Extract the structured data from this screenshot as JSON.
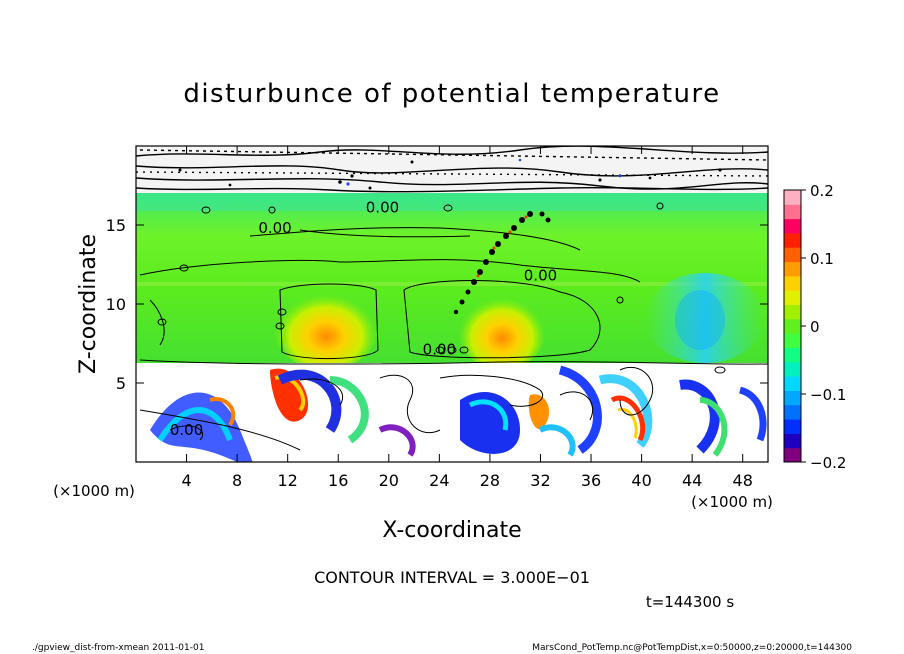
{
  "chart_data": {
    "type": "heatmap",
    "title": "disturbunce of potential temperature",
    "xlabel": "X-coordinate",
    "ylabel": "Z-coordinate",
    "x_unit": "(×1000 m)",
    "y_unit": "(×1000 m)",
    "xlim": [
      0,
      50
    ],
    "ylim": [
      0,
      20
    ],
    "x_ticks": [
      4,
      8,
      12,
      16,
      20,
      24,
      28,
      32,
      36,
      40,
      44,
      48
    ],
    "y_ticks": [
      5,
      10,
      15
    ],
    "colorbar": {
      "range": [
        -0.2,
        0.2
      ],
      "tick_labels": [
        "0.2",
        "0.1",
        "0",
        "−0.1",
        "−0.2"
      ],
      "tick_values": [
        0.2,
        0.1,
        0,
        -0.1,
        -0.2
      ]
    },
    "contour_labels": [
      {
        "text": "0.00",
        "x": 11,
        "z": 14.5
      },
      {
        "text": "0.00",
        "x": 19.5,
        "z": 15.8
      },
      {
        "text": "0.00",
        "x": 32,
        "z": 11.5
      },
      {
        "text": "0.00",
        "x": 24,
        "z": 6.8
      },
      {
        "text": "0.00",
        "x": 4,
        "z": 1.7
      }
    ],
    "warm_anomalies": [
      {
        "x": 15,
        "z": 7.5,
        "value": 0.1
      },
      {
        "x": 29,
        "z": 7.7,
        "value": 0.11
      }
    ],
    "contour_interval_text": "CONTOUR INTERVAL = 3.000E−01",
    "time_text": "t=144300 s"
  },
  "footer": {
    "left": "./gpview_dist-from-xmean  2011-01-01",
    "right": "MarsCond_PotTemp.nc@PotTempDist,x=0:50000,z=0:20000,t=144300"
  }
}
